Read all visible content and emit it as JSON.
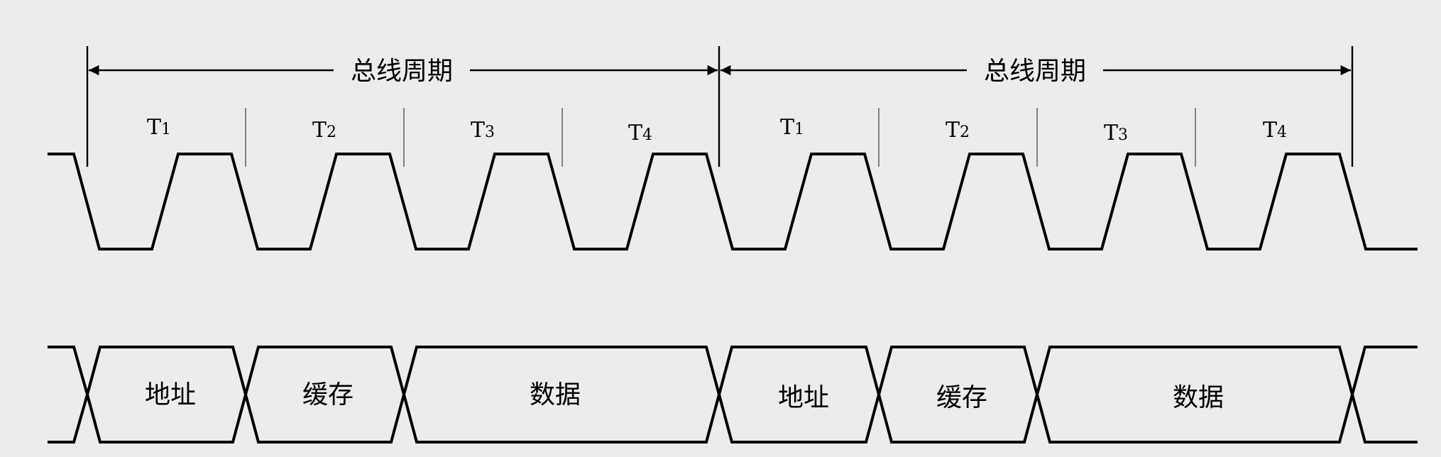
{
  "bus_cycles": [
    {
      "label": "总线周期",
      "states": [
        {
          "name": "T",
          "sub": "1"
        },
        {
          "name": "T",
          "sub": "2"
        },
        {
          "name": "T",
          "sub": "3"
        },
        {
          "name": "T",
          "sub": "4"
        }
      ],
      "data_phases": [
        "地址",
        "缓存",
        "数据"
      ]
    },
    {
      "label": "总线周期",
      "states": [
        {
          "name": "T",
          "sub": "1"
        },
        {
          "name": "T",
          "sub": "2"
        },
        {
          "name": "T",
          "sub": "3"
        },
        {
          "name": "T",
          "sub": "4"
        }
      ],
      "data_phases": [
        "地址",
        "缓存",
        "数据"
      ]
    }
  ],
  "colors": {
    "line": "#000000",
    "background": "#ececec"
  }
}
